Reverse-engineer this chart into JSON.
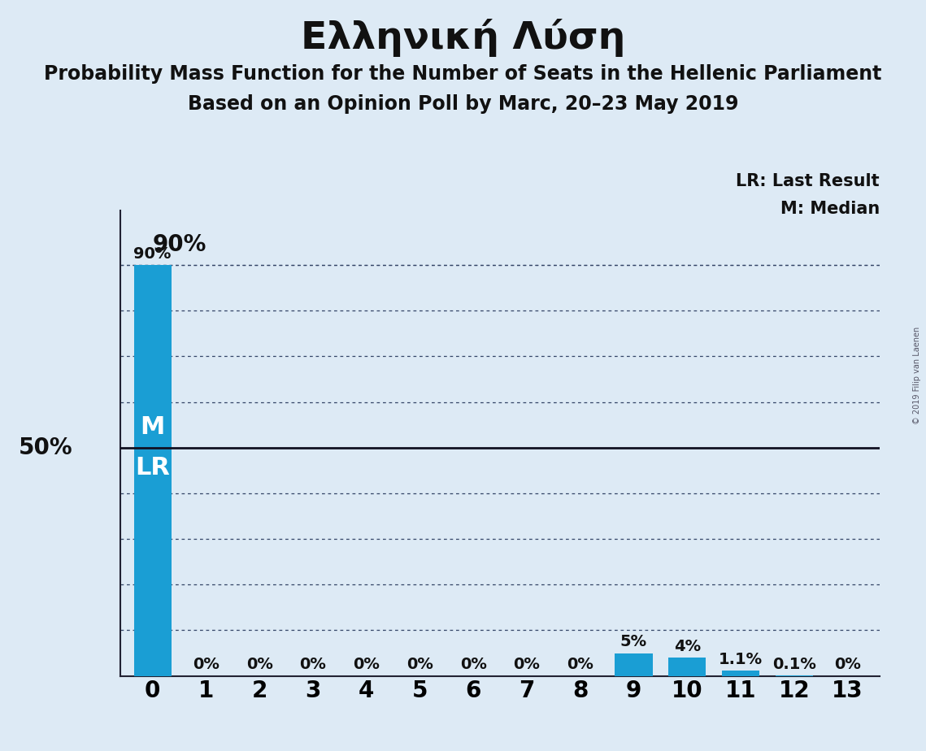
{
  "title": "Ελληνική Λύση",
  "subtitle1": "Probability Mass Function for the Number of Seats in the Hellenic Parliament",
  "subtitle2": "Based on an Opinion Poll by Marc, 20–23 May 2019",
  "copyright": "© 2019 Filip van Laenen",
  "x_labels": [
    "0",
    "1",
    "2",
    "3",
    "4",
    "5",
    "6",
    "7",
    "8",
    "9",
    "10",
    "11",
    "12",
    "13"
  ],
  "x_values": [
    0,
    1,
    2,
    3,
    4,
    5,
    6,
    7,
    8,
    9,
    10,
    11,
    12,
    13
  ],
  "values": [
    0.9,
    0.0,
    0.0,
    0.0,
    0.0,
    0.0,
    0.0,
    0.0,
    0.0,
    0.05,
    0.04,
    0.011,
    0.001,
    0.0
  ],
  "bar_labels": [
    "90%",
    "0%",
    "0%",
    "0%",
    "0%",
    "0%",
    "0%",
    "0%",
    "0%",
    "5%",
    "4%",
    "1.1%",
    "0.1%",
    "0%"
  ],
  "bar_color": "#1a9ed4",
  "background_color": "#ddeaf5",
  "median_label": "M",
  "lr_label": "LR",
  "fifty_pct": 0.5,
  "ninety_pct": 0.9,
  "legend_lr": "LR: Last Result",
  "legend_m": "M: Median",
  "title_fontsize": 34,
  "subtitle_fontsize": 17,
  "bar_label_fontsize": 14,
  "axis_tick_fontsize": 20,
  "legend_fontsize": 15,
  "ml_fontsize": 22,
  "pct_label_fontsize": 20
}
